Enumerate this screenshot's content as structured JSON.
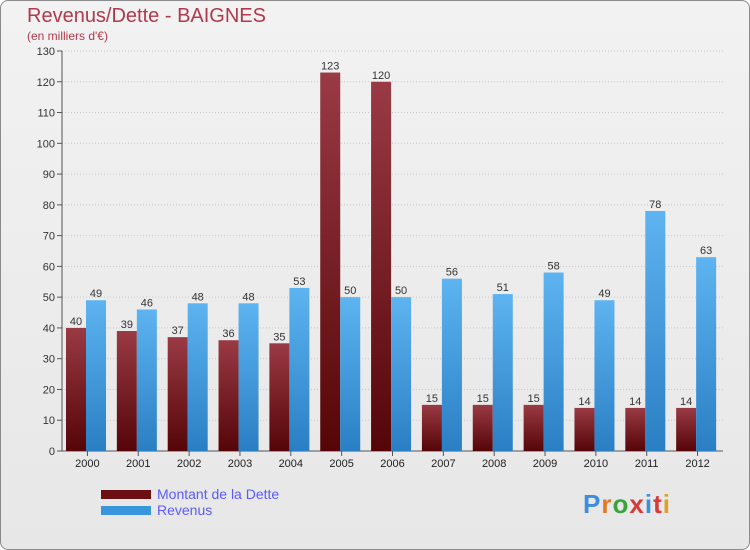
{
  "title": "Revenus/Dette - BAIGNES",
  "subtitle": "(en milliers d'€)",
  "logo": {
    "text": "Proxiti",
    "colors": [
      "#3b8ee0",
      "#e07b20",
      "#3aa33a",
      "#d63a3a",
      "#3b8ee0",
      "#d63a3a",
      "#e0a020"
    ]
  },
  "legend": [
    {
      "label": "Montant de la Dette",
      "color": "#6b0f12"
    },
    {
      "label": "Revenus",
      "color": "#3a96dc"
    }
  ],
  "chart_data": {
    "type": "bar",
    "categories": [
      "2000",
      "2001",
      "2002",
      "2003",
      "2004",
      "2005",
      "2006",
      "2007",
      "2008",
      "2009",
      "2010",
      "2011",
      "2012"
    ],
    "series": [
      {
        "name": "Montant de la Dette",
        "color": "#6b0f12",
        "values": [
          40,
          39,
          37,
          36,
          35,
          123,
          120,
          15,
          15,
          15,
          14,
          14,
          14
        ]
      },
      {
        "name": "Revenus",
        "color": "#3a96dc",
        "values": [
          49,
          46,
          48,
          48,
          53,
          50,
          50,
          56,
          51,
          58,
          49,
          78,
          63
        ]
      }
    ],
    "ylim": [
      0,
      130
    ],
    "yticks": [
      0,
      10,
      20,
      30,
      40,
      50,
      60,
      70,
      80,
      90,
      100,
      110,
      120,
      130
    ],
    "grid": true,
    "data_labels": true,
    "legend_position": "bottom-left"
  }
}
